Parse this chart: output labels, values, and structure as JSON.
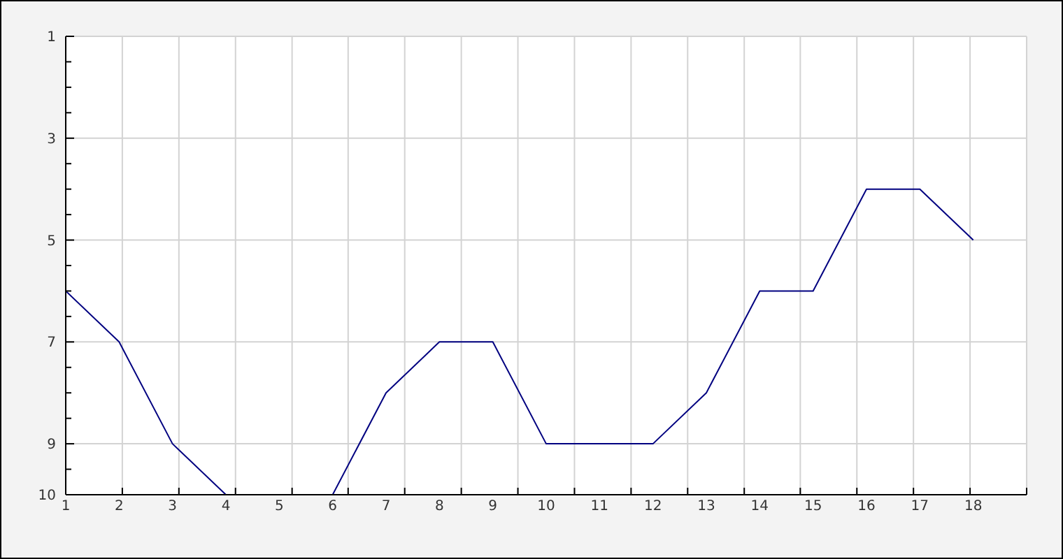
{
  "chart_data": {
    "type": "line",
    "x": [
      1,
      2,
      3,
      4,
      5,
      6,
      7,
      8,
      9,
      10,
      11,
      12,
      13,
      14,
      15,
      16,
      17,
      18
    ],
    "values": [
      6,
      7,
      9,
      10,
      null,
      10,
      8,
      7,
      7,
      9,
      9,
      9,
      8,
      6,
      6,
      4,
      4,
      5
    ],
    "color": "#000080",
    "xlim": [
      1,
      19
    ],
    "xticks": [
      1,
      2,
      {
        "value": 2.06,
        "label": null
      },
      3,
      {
        "value": 3.12,
        "label": null
      },
      4,
      {
        "value": 4.18,
        "label": null
      },
      5,
      {
        "value": 5.24,
        "label": null
      },
      6,
      {
        "value": 6.29,
        "label": null
      },
      7,
      {
        "value": 7.35,
        "label": null
      },
      8,
      {
        "value": 8.41,
        "label": null
      },
      9,
      {
        "value": 9.47,
        "label": null
      },
      10,
      {
        "value": 10.53,
        "label": null
      },
      11,
      {
        "value": 11.59,
        "label": null
      },
      12,
      {
        "value": 12.65,
        "label": null
      },
      13,
      {
        "value": 13.71,
        "label": null
      },
      14,
      {
        "value": 14.76,
        "label": null
      },
      15,
      {
        "value": 15.82,
        "label": null
      },
      16,
      {
        "value": 16.88,
        "label": null
      },
      17,
      {
        "value": 17.94,
        "label": null
      },
      18,
      {
        "value": 19,
        "label": null
      }
    ],
    "ylim": [
      10,
      1
    ],
    "yticks": [
      1,
      {
        "value": 1.5,
        "label": null
      },
      {
        "value": 2,
        "label": null
      },
      {
        "value": 2.5,
        "label": null
      },
      3,
      {
        "value": 3.5,
        "label": null
      },
      {
        "value": 4,
        "label": null
      },
      {
        "value": 4.5,
        "label": null
      },
      5,
      {
        "value": 5.5,
        "label": null
      },
      {
        "value": 6,
        "label": null
      },
      {
        "value": 6.5,
        "label": null
      },
      7,
      {
        "value": 7.5,
        "label": null
      },
      {
        "value": 8,
        "label": null
      },
      {
        "value": 8.5,
        "label": null
      },
      9,
      {
        "value": 9.5,
        "label": null
      },
      10
    ],
    "grid": true
  }
}
